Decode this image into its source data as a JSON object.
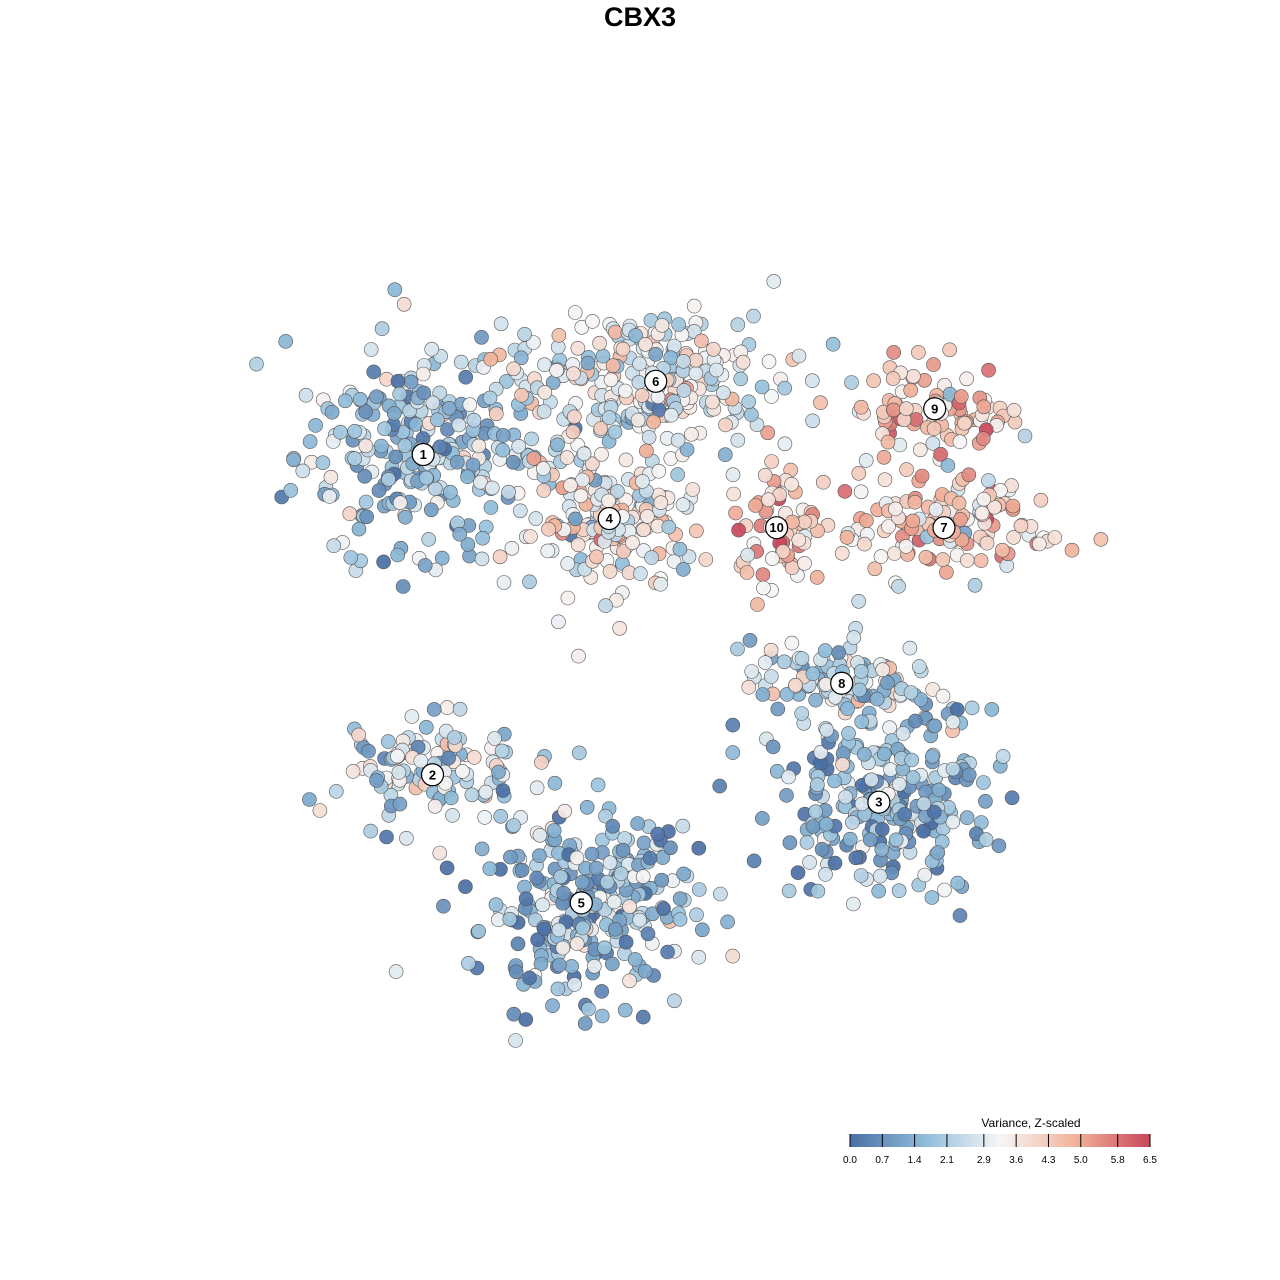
{
  "chart_data": {
    "type": "scatter",
    "title": "CBX3",
    "xlabel": "",
    "ylabel": "",
    "grid": false,
    "legend": {
      "title": "Variance, Z-scaled",
      "placement": "bottom-right",
      "ticks": [
        "0.0",
        "0.7",
        "1.4",
        "2.1",
        "2.9",
        "3.6",
        "4.3",
        "5.0",
        "5.8",
        "6.5"
      ],
      "min": 0.0,
      "max": 6.5
    },
    "colors": {
      "low": "#4a6fa5",
      "low_mid": "#8fbcd9",
      "mid": "#f6f6f6",
      "high_mid": "#f2b39b",
      "high": "#c8485a",
      "point_stroke": "#555555"
    },
    "xlim": [
      0,
      100
    ],
    "ylim": [
      0,
      100
    ],
    "clusters": [
      {
        "id": "1",
        "label": "1",
        "x": 24,
        "y": 70,
        "mean": 1.9
      },
      {
        "id": "2",
        "label": "2",
        "x": 25,
        "y": 35,
        "mean": 2.7
      },
      {
        "id": "3",
        "label": "3",
        "x": 73,
        "y": 32,
        "mean": 1.6
      },
      {
        "id": "4",
        "label": "4",
        "x": 44,
        "y": 63,
        "mean": 3.3
      },
      {
        "id": "5",
        "label": "5",
        "x": 41,
        "y": 21,
        "mean": 1.5
      },
      {
        "id": "6",
        "label": "6",
        "x": 49,
        "y": 78,
        "mean": 3.0
      },
      {
        "id": "7",
        "label": "7",
        "x": 80,
        "y": 62,
        "mean": 4.1
      },
      {
        "id": "8",
        "label": "8",
        "x": 69,
        "y": 45,
        "mean": 2.4
      },
      {
        "id": "9",
        "label": "9",
        "x": 79,
        "y": 75,
        "mean": 4.6
      },
      {
        "id": "10",
        "label": "10",
        "x": 62,
        "y": 62,
        "mean": 4.2
      }
    ]
  }
}
